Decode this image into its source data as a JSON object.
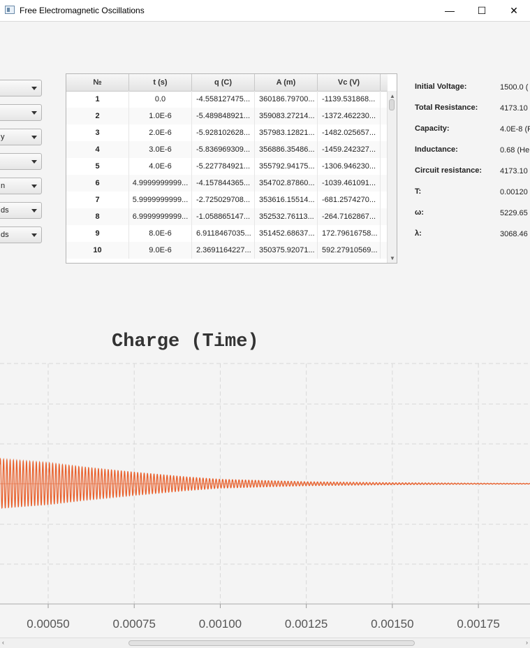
{
  "window": {
    "title": "Free Electromagnetic Oscillations",
    "minimize_glyph": "—",
    "maximize_glyph": "☐",
    "close_glyph": "✕"
  },
  "left_combos": [
    {
      "text": ""
    },
    {
      "text": ""
    },
    {
      "text": "y"
    },
    {
      "text": ""
    },
    {
      "text": "n"
    },
    {
      "text": "ds"
    },
    {
      "text": "ds"
    }
  ],
  "table": {
    "columns": [
      "№",
      "t (s)",
      "q (C)",
      "A (m)",
      "Vc (V)"
    ],
    "rows": [
      [
        "1",
        "0.0",
        "-4.558127475...",
        "360186.79700...",
        "-1139.531868..."
      ],
      [
        "2",
        "1.0E-6",
        "-5.489848921...",
        "359083.27214...",
        "-1372.462230..."
      ],
      [
        "3",
        "2.0E-6",
        "-5.928102628...",
        "357983.12821...",
        "-1482.025657..."
      ],
      [
        "4",
        "3.0E-6",
        "-5.836969309...",
        "356886.35486...",
        "-1459.242327..."
      ],
      [
        "5",
        "4.0E-6",
        "-5.227784921...",
        "355792.94175...",
        "-1306.946230..."
      ],
      [
        "6",
        "4.9999999999...",
        "-4.157844365...",
        "354702.87860...",
        "-1039.461091..."
      ],
      [
        "7",
        "5.9999999999...",
        "-2.725029708...",
        "353616.15514...",
        "-681.2574270..."
      ],
      [
        "8",
        "6.9999999999...",
        "-1.058865147...",
        "352532.76113...",
        "-264.7162867..."
      ],
      [
        "9",
        "8.0E-6",
        "6.9118467035...",
        "351452.68637...",
        "172.79616758..."
      ],
      [
        "10",
        "9.0E-6",
        "2.3691164227...",
        "350375.92071...",
        "592.27910569..."
      ]
    ]
  },
  "info": [
    {
      "label": "Initial Voltage:",
      "value": "1500.0 ("
    },
    {
      "label": "Total Resistance:",
      "value": "4173.10"
    },
    {
      "label": "Capacity:",
      "value": "4.0E-8 (F"
    },
    {
      "label": "Inductance:",
      "value": "0.68 (He"
    },
    {
      "label": "Circuit resistance:",
      "value": "4173.10"
    },
    {
      "label": "T:",
      "value": "0.00120"
    },
    {
      "label": "ω:",
      "value": "5229.65"
    },
    {
      "label": "λ:",
      "value": "3068.46"
    }
  ],
  "chart_data": {
    "type": "line",
    "title": "Charge (Time)",
    "xlabel": "",
    "ylabel": "",
    "x_ticks": [
      "0.00050",
      "0.00075",
      "0.00100",
      "0.00125",
      "0.00150",
      "0.00175"
    ],
    "x_tick_values": [
      0.0005,
      0.00075,
      0.001,
      0.00125,
      0.0015,
      0.00175
    ],
    "x_visible_range": [
      0.00036,
      0.0019
    ],
    "grid": true,
    "series": [
      {
        "color": "#e8602c",
        "function": "damped cosine q(t) = A·e^(-λt)·cos(ωt)",
        "x": [
          0.00036,
          0.0005,
          0.0006,
          0.00075,
          0.0009,
          0.001,
          0.00125,
          0.0015,
          0.00175,
          0.0019
        ],
        "envelope": [
          1.0,
          0.85,
          0.68,
          0.47,
          0.28,
          0.18,
          0.08,
          0.04,
          0.02,
          0.015
        ]
      }
    ],
    "axis_color": "#c8c8c8",
    "grid_color": "#d8d8d8"
  },
  "scrollbar": {
    "left_arrow": "‹",
    "right_arrow": "›",
    "up_arrow": "▲",
    "down_arrow": "▼"
  }
}
